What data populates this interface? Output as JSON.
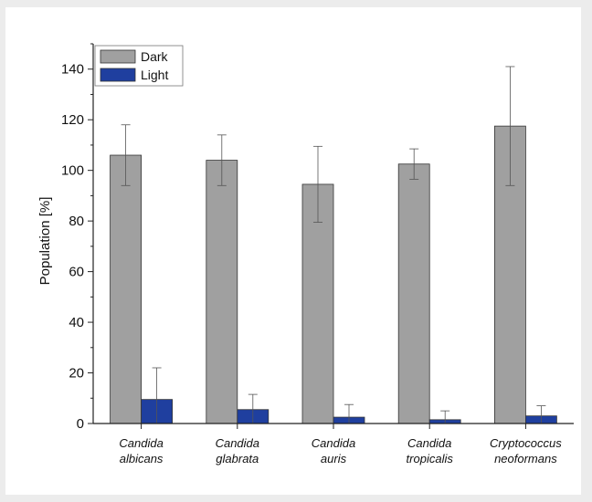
{
  "chart_data": {
    "type": "bar",
    "categories": [
      [
        "Candida",
        "albicans"
      ],
      [
        "Candida",
        "glabrata"
      ],
      [
        "Candida",
        "auris"
      ],
      [
        "Candida",
        "tropicalis"
      ],
      [
        "Cryptococcus",
        "neoformans"
      ]
    ],
    "series": [
      {
        "name": "Dark",
        "color": "#a0a0a0",
        "values": [
          106,
          104,
          94.5,
          102.5,
          117.5
        ],
        "errors": [
          12,
          10,
          15,
          6,
          23.5
        ]
      },
      {
        "name": "Light",
        "color": "#1f3f9f",
        "values": [
          9.5,
          5.5,
          2.5,
          1.5,
          3
        ],
        "errors": [
          12.5,
          6,
          5,
          3.5,
          4
        ]
      }
    ],
    "ylabel": "Population [%]",
    "xlabel": "",
    "title": "",
    "ylim": [
      0,
      150
    ],
    "yticks": [
      0,
      20,
      40,
      60,
      80,
      100,
      120,
      140
    ],
    "legend_position": "top-left",
    "grid": false
  }
}
